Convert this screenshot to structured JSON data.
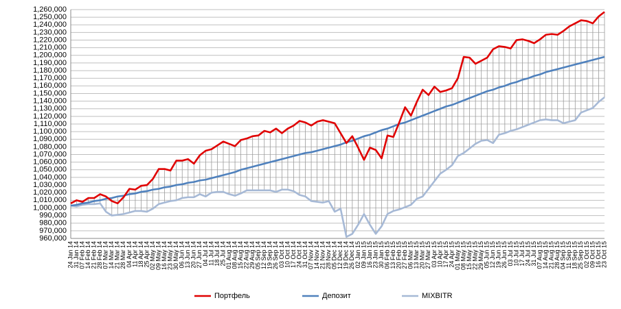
{
  "chart_data": {
    "type": "line",
    "categories": [
      "24 Jan 14",
      "31 Jan 14",
      "07 Feb 14",
      "14 Feb 14",
      "21 Feb 14",
      "28 Feb 14",
      "07 Mar 14",
      "14 Mar 14",
      "21 Mar 14",
      "28 Mar 14",
      "04 Apr 14",
      "11 Apr 14",
      "18 Apr 14",
      "25 Apr 14",
      "02 May 14",
      "09 May 14",
      "16 May 14",
      "23 May 14",
      "30 May 14",
      "06 Jun 14",
      "13 Jun 14",
      "20 Jun 14",
      "27 Jun 14",
      "04 Jul 14",
      "11 Jul 14",
      "18 Jul 14",
      "25 Jul 14",
      "01 Aug 14",
      "08 Aug 14",
      "15 Aug 14",
      "22 Aug 14",
      "29 Aug 14",
      "05 Sep 14",
      "12 Sep 14",
      "19 Sep 14",
      "26 Sep 14",
      "03 Oct 14",
      "10 Oct 14",
      "17 Oct 14",
      "24 Oct 14",
      "31 Oct 14",
      "07 Nov 14",
      "14 Nov 14",
      "21 Nov 14",
      "28 Nov 14",
      "05 Dec 14",
      "12 Dec 14",
      "19 Dec 14",
      "26 Dec 14",
      "02 Jan 15",
      "09 Jan 15",
      "16 Jan 15",
      "23 Jan 15",
      "30 Jan 15",
      "06 Feb 15",
      "13 Feb 15",
      "20 Feb 15",
      "27 Feb 15",
      "06 Mar 15",
      "13 Mar 15",
      "20 Mar 15",
      "27 Mar 15",
      "03 Apr 15",
      "10 Apr 15",
      "17 Apr 15",
      "24 Apr 15",
      "01 May 15",
      "08 May 15",
      "15 May 15",
      "22 May 15",
      "29 May 15",
      "05 Jun 15",
      "12 Jun 15",
      "19 Jun 15",
      "26 Jun 15",
      "03 Jul 15",
      "10 Jul 15",
      "17 Jul 15",
      "24 Jul 15",
      "31 Jul 15",
      "07 Aug 15",
      "14 Aug 15",
      "21 Aug 15",
      "28 Aug 15",
      "04 Sep 15",
      "11 Sep 15",
      "18 Sep 15",
      "25 Sep 15",
      "02 Oct 15",
      "09 Oct 15",
      "16 Oct 15",
      "23 Oct 15"
    ],
    "series": [
      {
        "name": "Портфель",
        "color": "#e00000",
        "values": [
          1006000,
          1010000,
          1008000,
          1013000,
          1013000,
          1018000,
          1015000,
          1009000,
          1006000,
          1014000,
          1025000,
          1024000,
          1029000,
          1030000,
          1038000,
          1051000,
          1051000,
          1049000,
          1062000,
          1062000,
          1064000,
          1058000,
          1069000,
          1075000,
          1077000,
          1082000,
          1087000,
          1084000,
          1081000,
          1089000,
          1091000,
          1094000,
          1095000,
          1101000,
          1099000,
          1104000,
          1098000,
          1104000,
          1108000,
          1114000,
          1112000,
          1108000,
          1113000,
          1115000,
          1113000,
          1111000,
          1098000,
          1085000,
          1094000,
          1079000,
          1063000,
          1079000,
          1076000,
          1065000,
          1095000,
          1093000,
          1112000,
          1132000,
          1121000,
          1139000,
          1155000,
          1148000,
          1159000,
          1152000,
          1154000,
          1157000,
          1170000,
          1198000,
          1197000,
          1189000,
          1193000,
          1197000,
          1208000,
          1212000,
          1211000,
          1209000,
          1220000,
          1221000,
          1219000,
          1216000,
          1221000,
          1227000,
          1228000,
          1227000,
          1232000,
          1238000,
          1242000,
          1246000,
          1245000,
          1242000,
          1251000,
          1257000
        ]
      },
      {
        "name": "Депозит",
        "color": "#4f81bd",
        "values": [
          1003000,
          1004000,
          1006000,
          1007000,
          1009000,
          1010000,
          1012000,
          1013000,
          1015000,
          1016000,
          1018000,
          1019000,
          1021000,
          1022000,
          1024000,
          1025000,
          1027000,
          1028000,
          1030000,
          1031000,
          1033000,
          1034000,
          1036000,
          1037000,
          1039000,
          1041000,
          1043000,
          1045000,
          1047000,
          1050000,
          1052000,
          1054000,
          1056000,
          1058000,
          1060000,
          1062000,
          1064000,
          1066000,
          1068000,
          1070000,
          1072000,
          1073000,
          1075000,
          1077000,
          1079000,
          1081000,
          1083000,
          1086000,
          1088000,
          1091000,
          1094000,
          1096000,
          1099000,
          1102000,
          1104000,
          1107000,
          1110000,
          1112000,
          1115000,
          1118000,
          1121000,
          1124000,
          1127000,
          1130000,
          1133000,
          1135000,
          1138000,
          1141000,
          1144000,
          1147000,
          1150000,
          1153000,
          1155000,
          1158000,
          1160000,
          1163000,
          1165000,
          1168000,
          1170000,
          1173000,
          1175000,
          1178000,
          1180000,
          1182000,
          1184000,
          1186000,
          1188000,
          1190000,
          1192000,
          1194000,
          1196000,
          1198000
        ]
      },
      {
        "name": "MIXBITR",
        "color": "#a6b9d6",
        "values": [
          1003000,
          1002000,
          1004000,
          1005000,
          1005000,
          1006000,
          995000,
          990000,
          991000,
          992000,
          994000,
          996000,
          996000,
          995000,
          999000,
          1005000,
          1007000,
          1009000,
          1010000,
          1013000,
          1014000,
          1014000,
          1018000,
          1015000,
          1020000,
          1021000,
          1021000,
          1018000,
          1016000,
          1019000,
          1023000,
          1023000,
          1023000,
          1023000,
          1023000,
          1021000,
          1024000,
          1024000,
          1022000,
          1017000,
          1015000,
          1009000,
          1008000,
          1007000,
          1009000,
          995000,
          999000,
          962000,
          966000,
          978000,
          992000,
          978000,
          966000,
          976000,
          992000,
          996000,
          998000,
          1001000,
          1004000,
          1012000,
          1015000,
          1025000,
          1035000,
          1045000,
          1050000,
          1056000,
          1068000,
          1072000,
          1078000,
          1084000,
          1088000,
          1089000,
          1085000,
          1096000,
          1098000,
          1101000,
          1103000,
          1106000,
          1109000,
          1112000,
          1115000,
          1116000,
          1115000,
          1115000,
          1111000,
          1113000,
          1115000,
          1125000,
          1128000,
          1131000,
          1139000,
          1145000
        ]
      }
    ],
    "ylim": [
      960000,
      1260000
    ],
    "yticks": [
      {
        "value": 960000,
        "label": "960,000"
      },
      {
        "value": 970000,
        "label": "970,000"
      },
      {
        "value": 980000,
        "label": "980,000"
      },
      {
        "value": 990000,
        "label": "990,000"
      },
      {
        "value": 1000000,
        "label": "1,000,000"
      },
      {
        "value": 1010000,
        "label": "1,010,000"
      },
      {
        "value": 1020000,
        "label": "1,020,000"
      },
      {
        "value": 1030000,
        "label": "1,030,000"
      },
      {
        "value": 1040000,
        "label": "1,040,000"
      },
      {
        "value": 1050000,
        "label": "1,050,000"
      },
      {
        "value": 1060000,
        "label": "1,060,000"
      },
      {
        "value": 1070000,
        "label": "1,070,000"
      },
      {
        "value": 1080000,
        "label": "1,080,000"
      },
      {
        "value": 1090000,
        "label": "1,090,000"
      },
      {
        "value": 1100000,
        "label": "1,100,000"
      },
      {
        "value": 1110000,
        "label": "1,110,000"
      },
      {
        "value": 1120000,
        "label": "1,120,000"
      },
      {
        "value": 1130000,
        "label": "1,130,000"
      },
      {
        "value": 1140000,
        "label": "1,140,000"
      },
      {
        "value": 1150000,
        "label": "1,150,000"
      },
      {
        "value": 1160000,
        "label": "1,160,000"
      },
      {
        "value": 1170000,
        "label": "1,170,000"
      },
      {
        "value": 1180000,
        "label": "1,180,000"
      },
      {
        "value": 1190000,
        "label": "1,190,000"
      },
      {
        "value": 1200000,
        "label": "1,200,000"
      },
      {
        "value": 1210000,
        "label": "1,210,000"
      },
      {
        "value": 1220000,
        "label": "1,220,000"
      },
      {
        "value": 1230000,
        "label": "1,230,000"
      },
      {
        "value": 1240000,
        "label": "1,240,000"
      },
      {
        "value": 1250000,
        "label": "1,250,000"
      },
      {
        "value": 1260000,
        "label": "1,260,000"
      }
    ],
    "grid": true,
    "high_low_lines": true,
    "legend": "bottom"
  }
}
